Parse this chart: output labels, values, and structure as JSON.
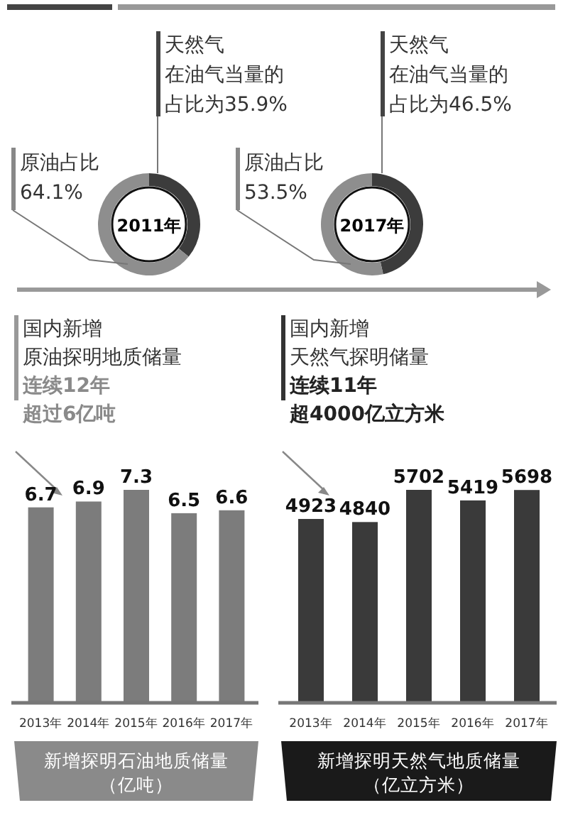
{
  "chart_data": [
    {
      "type": "donut",
      "title": "2011年",
      "categories": [
        "天然气",
        "原油占比"
      ],
      "values": [
        35.9,
        64.1
      ],
      "colors": [
        "#3c3c3c",
        "#8e8e8e"
      ],
      "value_labels": [
        "在油气当量的占比为35.9%",
        "64.1%"
      ]
    },
    {
      "type": "donut",
      "title": "2017年",
      "categories": [
        "天然气",
        "原油占比"
      ],
      "values": [
        46.5,
        53.5
      ],
      "colors": [
        "#3c3c3c",
        "#8e8e8e"
      ],
      "value_labels": [
        "在油气当量的占比为46.5%",
        "53.5%"
      ]
    },
    {
      "type": "bar",
      "title": "国内新增",
      "subtitle": "原油探明地质储量",
      "annotations": [
        "连续12年",
        "超过6亿吨"
      ],
      "xlabel": "新增探明石油地质储量（亿吨）",
      "categories": [
        "2013年",
        "2014年",
        "2015年",
        "2016年",
        "2017年"
      ],
      "values": [
        6.7,
        6.9,
        7.3,
        6.5,
        6.6
      ],
      "color": "#7c7c7c",
      "data_labels": true,
      "tick_labels": "x"
    },
    {
      "type": "bar",
      "title": "国内新增",
      "subtitle": "天然气探明储量",
      "annotations": [
        "连续11年",
        "超4000亿立方米"
      ],
      "xlabel": "新增探明天然气地质储量（亿立方米）",
      "categories": [
        "2013年",
        "2014年",
        "2015年",
        "2016年",
        "2017年"
      ],
      "values": [
        4923,
        4840,
        5702,
        5419,
        5698
      ],
      "color": "#3a3a3a",
      "data_labels": true,
      "tick_labels": "x"
    }
  ]
}
